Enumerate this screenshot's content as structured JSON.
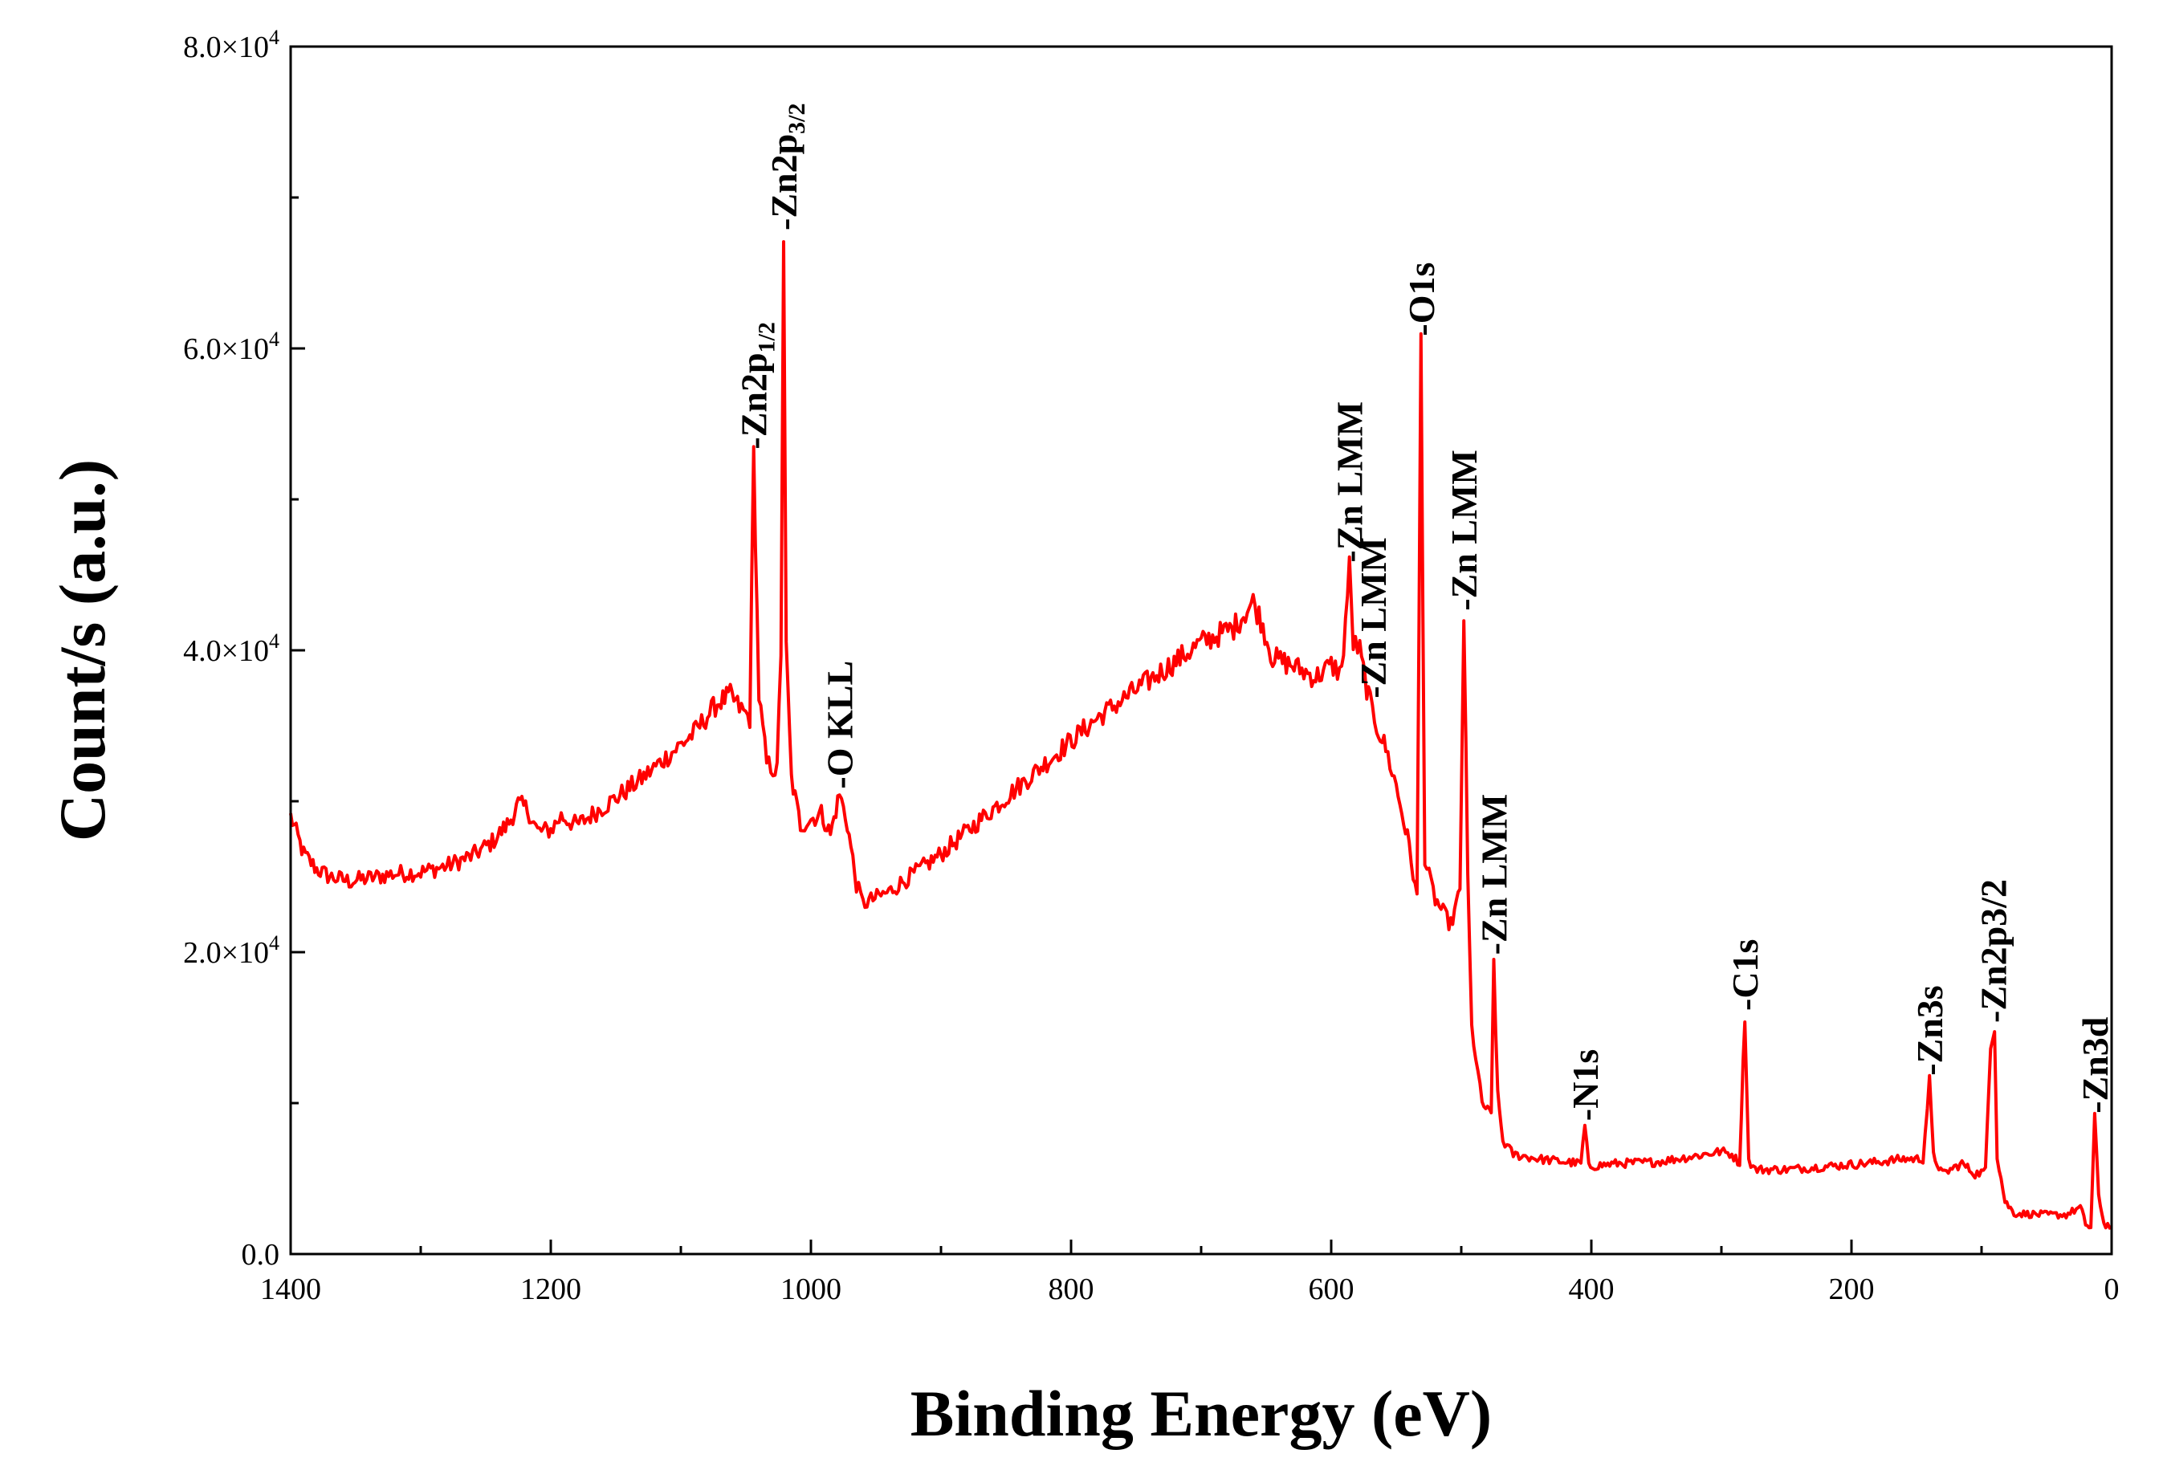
{
  "chart_data": {
    "type": "line",
    "xlabel": "Binding Energy (eV)",
    "ylabel": "Count/s (a.u.)",
    "xlim": [
      1400,
      0
    ],
    "ylim": [
      0,
      80000
    ],
    "x_reversed": true,
    "grid": false,
    "legend": "none",
    "x_ticks": [
      {
        "value": 1400,
        "label": "1400"
      },
      {
        "value": 1200,
        "label": "1200"
      },
      {
        "value": 1000,
        "label": "1000"
      },
      {
        "value": 800,
        "label": "800"
      },
      {
        "value": 600,
        "label": "600"
      },
      {
        "value": 400,
        "label": "400"
      },
      {
        "value": 200,
        "label": "200"
      },
      {
        "value": 0,
        "label": "0"
      }
    ],
    "y_ticks": [
      {
        "value": 0,
        "mantissa": "0.0",
        "exp": ""
      },
      {
        "value": 20000,
        "mantissa": "2.0×10",
        "exp": "4"
      },
      {
        "value": 40000,
        "mantissa": "4.0×10",
        "exp": "4"
      },
      {
        "value": 60000,
        "mantissa": "6.0×10",
        "exp": "4"
      },
      {
        "value": 80000,
        "mantissa": "8.0×10",
        "exp": "4"
      }
    ],
    "series": [
      {
        "color": "#ff0000",
        "points": [
          [
            1400,
            29000
          ],
          [
            1390,
            26500
          ],
          [
            1380,
            25500
          ],
          [
            1370,
            25000
          ],
          [
            1355,
            24700
          ],
          [
            1340,
            24900
          ],
          [
            1320,
            25200
          ],
          [
            1300,
            25300
          ],
          [
            1280,
            25700
          ],
          [
            1260,
            26400
          ],
          [
            1245,
            27300
          ],
          [
            1232,
            28600
          ],
          [
            1225,
            29800
          ],
          [
            1218,
            29500
          ],
          [
            1210,
            28000
          ],
          [
            1200,
            28100
          ],
          [
            1192,
            29000
          ],
          [
            1180,
            28400
          ],
          [
            1165,
            29300
          ],
          [
            1150,
            30200
          ],
          [
            1130,
            31500
          ],
          [
            1110,
            33000
          ],
          [
            1090,
            34500
          ],
          [
            1072,
            36500
          ],
          [
            1062,
            37000
          ],
          [
            1055,
            36200
          ],
          [
            1047,
            35500
          ],
          [
            1044,
            53000
          ],
          [
            1040,
            37000
          ],
          [
            1034,
            32500
          ],
          [
            1026,
            32000
          ],
          [
            1023,
            40000
          ],
          [
            1021,
            67500
          ],
          [
            1019,
            40000
          ],
          [
            1015,
            31500
          ],
          [
            1008,
            28400
          ],
          [
            1000,
            28800
          ],
          [
            992,
            29200
          ],
          [
            985,
            27800
          ],
          [
            978,
            30500
          ],
          [
            972,
            28500
          ],
          [
            965,
            24500
          ],
          [
            960,
            23200
          ],
          [
            940,
            24000
          ],
          [
            900,
            26500
          ],
          [
            860,
            29500
          ],
          [
            820,
            32500
          ],
          [
            780,
            35500
          ],
          [
            740,
            38000
          ],
          [
            700,
            40500
          ],
          [
            675,
            41500
          ],
          [
            660,
            43200
          ],
          [
            654,
            42000
          ],
          [
            645,
            39500
          ],
          [
            630,
            39000
          ],
          [
            612,
            38200
          ],
          [
            600,
            39000
          ],
          [
            592,
            38500
          ],
          [
            586,
            45500
          ],
          [
            583,
            40500
          ],
          [
            578,
            40000
          ],
          [
            574,
            38000
          ],
          [
            570,
            36500
          ],
          [
            565,
            35000
          ],
          [
            558,
            33500
          ],
          [
            550,
            31000
          ],
          [
            540,
            27000
          ],
          [
            534,
            23500
          ],
          [
            531,
            60500
          ],
          [
            528,
            26000
          ],
          [
            520,
            23500
          ],
          [
            508,
            21800
          ],
          [
            501,
            24000
          ],
          [
            498,
            42300
          ],
          [
            495,
            25000
          ],
          [
            492,
            15000
          ],
          [
            484,
            10000
          ],
          [
            477,
            9200
          ],
          [
            475,
            19500
          ],
          [
            472,
            10500
          ],
          [
            468,
            7500
          ],
          [
            460,
            6600
          ],
          [
            440,
            6300
          ],
          [
            420,
            6100
          ],
          [
            408,
            6000
          ],
          [
            405,
            8500
          ],
          [
            402,
            5800
          ],
          [
            380,
            6000
          ],
          [
            350,
            6100
          ],
          [
            320,
            6500
          ],
          [
            300,
            6800
          ],
          [
            292,
            6600
          ],
          [
            286,
            6000
          ],
          [
            282,
            15800
          ],
          [
            279,
            6200
          ],
          [
            274,
            5600
          ],
          [
            250,
            5600
          ],
          [
            220,
            5800
          ],
          [
            190,
            6000
          ],
          [
            160,
            6300
          ],
          [
            145,
            6300
          ],
          [
            140,
            11500
          ],
          [
            137,
            6500
          ],
          [
            130,
            5300
          ],
          [
            115,
            6000
          ],
          [
            105,
            5300
          ],
          [
            97,
            5500
          ],
          [
            93,
            14000
          ],
          [
            90,
            15000
          ],
          [
            88,
            6500
          ],
          [
            82,
            3500
          ],
          [
            75,
            2700
          ],
          [
            50,
            2600
          ],
          [
            35,
            2600
          ],
          [
            24,
            3100
          ],
          [
            20,
            2000
          ],
          [
            16,
            1700
          ],
          [
            13,
            9000
          ],
          [
            10,
            4000
          ],
          [
            6,
            2000
          ],
          [
            0,
            1800
          ]
        ]
      }
    ],
    "annotations": [
      {
        "x": 1044,
        "y": 53000,
        "main": "-Zn2p",
        "sub": "1/2"
      },
      {
        "x": 1021,
        "y": 67500,
        "main": "-Zn2p",
        "sub": "3/2"
      },
      {
        "x": 978,
        "y": 30500,
        "main": "-O KLL",
        "sub": ""
      },
      {
        "x": 586,
        "y": 45500,
        "main": "-Zn LMM",
        "sub": ""
      },
      {
        "x": 568,
        "y": 36500,
        "main": "-Zn LMM",
        "sub": ""
      },
      {
        "x": 531,
        "y": 60500,
        "main": "-O1s",
        "sub": ""
      },
      {
        "x": 498,
        "y": 42300,
        "main": "-Zn LMM",
        "sub": ""
      },
      {
        "x": 475,
        "y": 19500,
        "main": "-Zn LMM",
        "sub": ""
      },
      {
        "x": 405,
        "y": 8500,
        "main": "-N1s",
        "sub": ""
      },
      {
        "x": 282,
        "y": 15800,
        "main": "-C1s",
        "sub": ""
      },
      {
        "x": 140,
        "y": 11500,
        "main": "-Zn3s",
        "sub": ""
      },
      {
        "x": 91,
        "y": 15000,
        "main": "-Zn2p3/2",
        "sub": ""
      },
      {
        "x": 13,
        "y": 9000,
        "main": "-Zn3d",
        "sub": ""
      }
    ]
  }
}
